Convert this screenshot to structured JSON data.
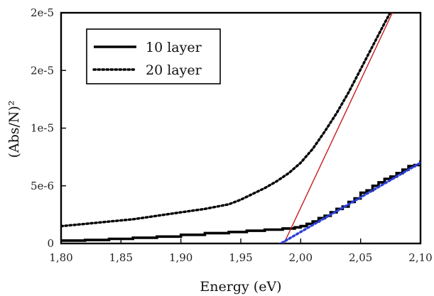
{
  "chart_data": {
    "type": "line",
    "xlabel": "Energy (eV)",
    "ylabel": "(Abs/N)²",
    "xlim": [
      1.8,
      2.1
    ],
    "ylim": [
      0,
      2e-05
    ],
    "grid": false,
    "legend_position": "top-left",
    "x_ticks": [
      {
        "value": 1.8,
        "label": "1,80"
      },
      {
        "value": 1.85,
        "label": "1,85"
      },
      {
        "value": 1.9,
        "label": "1,90"
      },
      {
        "value": 1.95,
        "label": "1,95"
      },
      {
        "value": 2.0,
        "label": "2,00"
      },
      {
        "value": 2.05,
        "label": "2,05"
      },
      {
        "value": 2.1,
        "label": "2,10"
      }
    ],
    "y_ticks": [
      {
        "value": 0,
        "label": "0"
      },
      {
        "value": 5e-06,
        "label": "5e-6"
      },
      {
        "value": 1e-05,
        "label": "1e-5"
      },
      {
        "value": 1.5e-05,
        "label": "2e-5"
      },
      {
        "value": 2e-05,
        "label": "2e-5"
      }
    ],
    "series": [
      {
        "name": "10 layer",
        "style": "solid",
        "color": "#000000",
        "x": [
          1.8,
          1.82,
          1.84,
          1.86,
          1.88,
          1.9,
          1.92,
          1.94,
          1.955,
          1.97,
          1.985,
          1.995,
          2.0,
          2.005,
          2.01,
          2.015,
          2.02,
          2.025,
          2.03,
          2.035,
          2.04,
          2.045,
          2.05,
          2.055,
          2.06,
          2.065,
          2.07,
          2.075,
          2.08,
          2.085,
          2.09,
          2.095,
          2.1
        ],
        "y": [
          2.5e-07,
          3e-07,
          4e-07,
          5e-07,
          6e-07,
          7.5e-07,
          9e-07,
          1e-06,
          1.1e-06,
          1.2e-06,
          1.3e-06,
          1.4e-06,
          1.5e-06,
          1.7e-06,
          1.9e-06,
          2.2e-06,
          2.4e-06,
          2.7e-06,
          3e-06,
          3.2e-06,
          3.6e-06,
          3.9e-06,
          4.4e-06,
          4.6e-06,
          5e-06,
          5.3e-06,
          5.6e-06,
          5.8e-06,
          6.1e-06,
          6.4e-06,
          6.7e-06,
          6.8e-06,
          7.2e-06
        ]
      },
      {
        "name": "20 layer",
        "style": "dotted",
        "color": "#000000",
        "x": [
          1.8,
          1.82,
          1.84,
          1.86,
          1.88,
          1.9,
          1.92,
          1.94,
          1.95,
          1.96,
          1.97,
          1.98,
          1.99,
          2.0,
          2.01,
          2.02,
          2.03,
          2.04,
          2.05,
          2.06,
          2.07,
          2.08
        ],
        "y": [
          1.5e-06,
          1.7e-06,
          1.9e-06,
          2.1e-06,
          2.4e-06,
          2.7e-06,
          3e-06,
          3.4e-06,
          3.8e-06,
          4.3e-06,
          4.8e-06,
          5.4e-06,
          6.1e-06,
          7e-06,
          8.2e-06,
          9.7e-06,
          1.13e-05,
          1.31e-05,
          1.51e-05,
          1.71e-05,
          1.91e-05,
          2.1e-05
        ]
      },
      {
        "style": "solid",
        "color": "#cc1a1a",
        "x": [
          1.986,
          2.081
        ],
        "y": [
          0.0,
          2.1e-05
        ]
      },
      {
        "style": "dotted",
        "color": "#2a3fd6",
        "x": [
          1.975,
          2.1
        ],
        "y": [
          -5e-07,
          7e-06
        ]
      }
    ]
  }
}
